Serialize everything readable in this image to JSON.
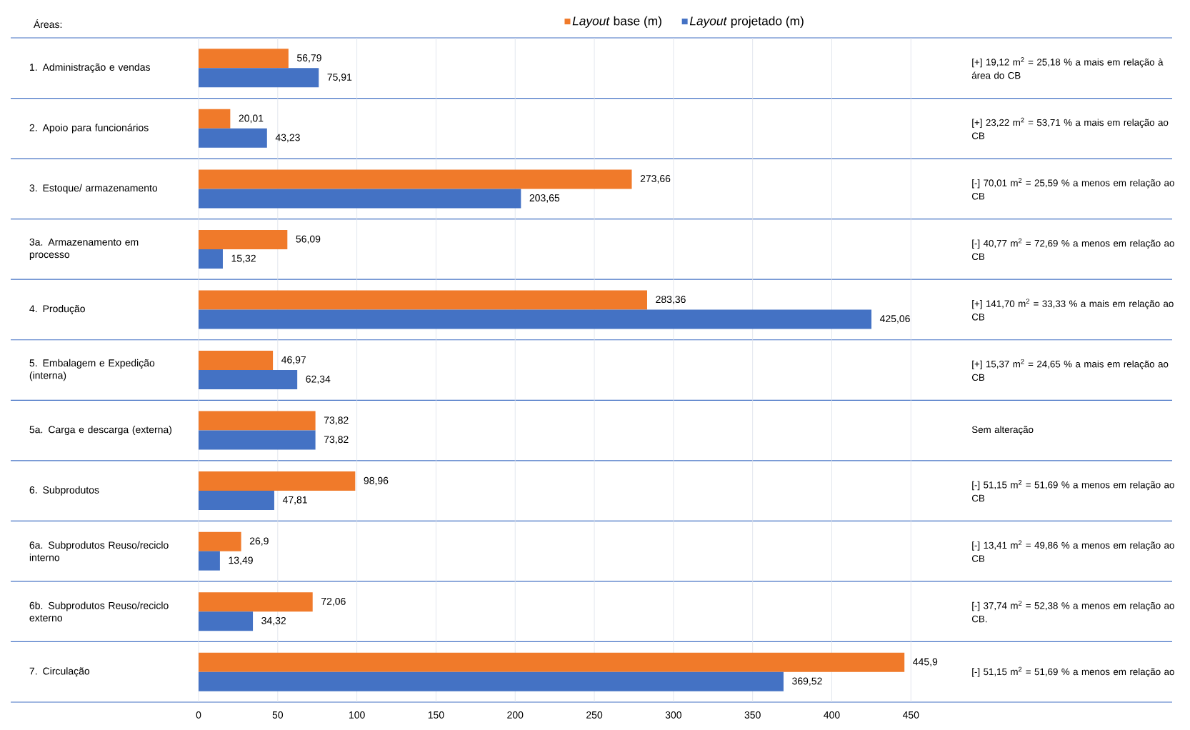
{
  "chart_data": {
    "type": "bar",
    "orientation": "horizontal",
    "ylabel": "Áreas:",
    "categories": [
      "1. Administração e vendas",
      "2. Apoio para funcionários",
      "3. Estoque/ armazenamento",
      "3a. Armazenamento em processo",
      "4. Produção",
      "5. Embalagem e Expedição (interna)",
      "5a. Carga e descarga (externa)",
      "6. Subprodutos",
      "6a. Subprodutos Reuso/reciclo interno",
      "6b. Subprodutos Reuso/reciclo externo",
      "7. Circulação"
    ],
    "series": [
      {
        "name": "*Layout* base (m)",
        "color": "#f07a2a",
        "values": [
          56.79,
          20.01,
          273.66,
          56.09,
          283.36,
          46.97,
          73.82,
          98.96,
          26.9,
          72.06,
          445.9
        ],
        "value_labels": [
          "56,79",
          "20,01",
          "273,66",
          "56,09",
          "283,36",
          "46,97",
          "73,82",
          "98,96",
          "26,9",
          "72,06",
          "445,9"
        ]
      },
      {
        "name": "*Layout* projetado (m)",
        "color": "#4472c4",
        "values": [
          75.91,
          43.23,
          203.65,
          15.32,
          425.06,
          62.34,
          73.82,
          47.81,
          13.49,
          34.32,
          369.52
        ],
        "value_labels": [
          "75,91",
          "43,23",
          "203,65",
          "15,32",
          "425,06",
          "62,34",
          "73,82",
          "47,81",
          "13,49",
          "34,32",
          "369,52"
        ]
      }
    ],
    "xlim": [
      0,
      615
    ],
    "xticks": [
      0,
      50,
      100,
      150,
      200,
      250,
      300,
      350,
      400,
      450
    ],
    "grid": "x",
    "legend": "top",
    "annotations": [
      "[+] 19,12 m$^{2}$ = 25,18 % a mais em relação à área do CB",
      "[+] 23,22 m$^{2}$ = 53,71 % a mais em relação ao CB",
      "[-] 70,01 m$^{2}$ = 25,59 % a menos em relação ao CB",
      "[-] 40,77 m$^{2}$ = 72,69 % a menos em relação ao CB",
      "[+] 141,70 m$^{2}$ = 33,33 % a mais em relação ao CB",
      "[+] 15,37 m$^{2}$ = 24,65 % a mais em relação ao CB",
      "Sem alteração",
      "[-] 51,15 m$^{2}$ = 51,69 % a menos em relação ao CB",
      "[-] 13,41 m$^{2}$ = 49,86 % a menos em relação ao CB",
      "[-] 37,74 m$^{2}$ = 52,38 % a menos em relação ao CB.",
      "[-] 51,15 m$^{2}$ = 51,69 % a menos em relação ao"
    ]
  }
}
